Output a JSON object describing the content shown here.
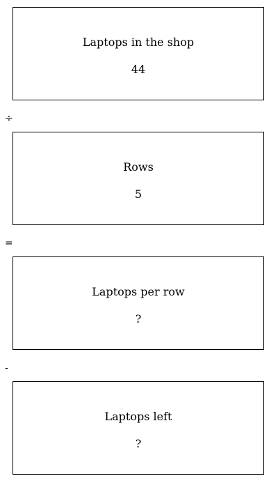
{
  "boxes": [
    {
      "label": "Laptops in the shop",
      "value": "44"
    },
    {
      "label": "Rows",
      "value": "5"
    },
    {
      "label": "Laptops per row",
      "value": "?"
    },
    {
      "label": "Laptops left",
      "value": "?"
    }
  ],
  "operators": [
    "÷",
    "=",
    "-"
  ]
}
